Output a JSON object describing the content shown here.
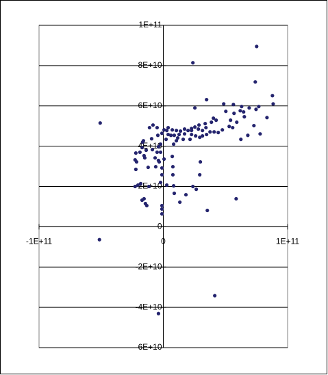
{
  "chart_data": {
    "type": "scatter",
    "color": "#24246e",
    "grid": true,
    "xlim": [
      -100000000000.0,
      100000000000.0
    ],
    "xticks": [
      {
        "value": -100000000000.0,
        "label": "-1E+11"
      },
      0,
      {
        "value": 100000000000.0,
        "label": "1E+11"
      }
    ],
    "ylim": [
      -60000000000.0,
      100000000000.0
    ],
    "yticks": [
      {
        "value": 100000000000.0,
        "label": "1E+11"
      },
      {
        "value": 80000000000.0,
        "label": "8E+10"
      },
      {
        "value": 60000000000.0,
        "label": "6E+10"
      },
      {
        "value": 40000000000.0,
        "label": "4E+10"
      },
      {
        "value": 20000000000.0,
        "label": "2E+10"
      },
      0,
      {
        "value": -20000000000.0,
        "label": "-2E+10"
      },
      {
        "value": -40000000000.0,
        "label": "-4E+10"
      },
      {
        "value": -60000000000.0,
        "label": "-6E+10"
      }
    ],
    "x": [
      75100000000.0,
      23800000000.0,
      74000000000.0,
      34800000000.0,
      87800000000.0,
      88400000000.0,
      48600000000.0,
      56400000000.0,
      63000000000.0,
      69100000000.0,
      76800000000.0,
      74600000000.0,
      25400000000.0,
      50300000000.0,
      56900000000.0,
      61900000000.0,
      64600000000.0,
      83400000000.0,
      65200000000.0,
      -50800000000.0,
      42500000000.0,
      54100000000.0,
      59100000000.0,
      72900000000.0,
      53000000000.0,
      55800000000.0,
      40300000000.0,
      38700000000.0,
      33700000000.0,
      28700000000.0,
      47500000000.0,
      40900000000.0,
      44200000000.0,
      34300000000.0,
      31500000000.0,
      28200000000.0,
      25400000000.0,
      22700000000.0,
      19900000000.0,
      17100000000.0,
      13800000000.0,
      10500000000.0,
      7200000000.0,
      3900000000.0,
      2800000000.0,
      600000000.0,
      -5000000000.0,
      -8300000000.0,
      -11100000000.0,
      -1100000000.0,
      8800000000.0,
      12700000000.0,
      17100000000.0,
      22700000000.0,
      26000000000.0,
      29300000000.0,
      11600000000.0,
      16000000000.0,
      21500000000.0,
      6100000000.0,
      3900000000.0,
      22700000000.0,
      31500000000.0,
      34800000000.0,
      37600000000.0,
      77900000000.0,
      62400000000.0,
      68000000000.0,
      10500000000.0,
      8300000000.0,
      2200000000.0,
      -4400000000.0,
      -9400000000.0,
      -16000000000.0,
      -17100000000.0,
      -13800000000.0,
      -8800000000.0,
      -3900000000.0,
      -2200000000.0,
      -22100000000.0,
      -16600000000.0,
      -14900000000.0,
      -5000000000.0,
      600000000.0,
      -21500000000.0,
      -18800000000.0,
      -15500000000.0,
      -6600000000.0,
      -3900000000.0,
      -2200000000.0,
      -22700000000.0,
      -12200000000.0,
      -3300000000.0,
      -1100000000.0,
      7200000000.0,
      29800000000.0,
      7700000000.0,
      -6100000000.0,
      -22100000000.0,
      -1100000000.0,
      7700000000.0,
      29300000000.0,
      -2200000000.0,
      -18200000000.0,
      -20400000000.0,
      -22700000000.0,
      -11600000000.0,
      2800000000.0,
      8300000000.0,
      23800000000.0,
      26500000000.0,
      18200000000.0,
      8800000000.0,
      13300000000.0,
      -15500000000.0,
      -17100000000.0,
      -14400000000.0,
      -13300000000.0,
      -1100000000.0,
      -1100000000.0,
      -1100000000.0,
      35400000000.0,
      58600000000.0,
      -51400000000.0,
      41400000000.0,
      -3900000000.0
    ],
    "values": [
      89500000000.0,
      81400000000.0,
      71900000000.0,
      63100000000.0,
      65100000000.0,
      61000000000.0,
      61000000000.0,
      60700000000.0,
      59700000000.0,
      59000000000.0,
      59700000000.0,
      58300000000.0,
      59000000000.0,
      57300000000.0,
      56300000000.0,
      57600000000.0,
      57000000000.0,
      54200000000.0,
      54600000000.0,
      51500000000.0,
      52900000000.0,
      52900000000.0,
      51900000000.0,
      50200000000.0,
      49800000000.0,
      49200000000.0,
      53900000000.0,
      51900000000.0,
      51200000000.0,
      50500000000.0,
      48100000000.0,
      47100000000.0,
      46800000000.0,
      49200000000.0,
      47800000000.0,
      48500000000.0,
      49500000000.0,
      48800000000.0,
      47800000000.0,
      48500000000.0,
      47500000000.0,
      47800000000.0,
      48100000000.0,
      49200000000.0,
      47800000000.0,
      48100000000.0,
      49200000000.0,
      50500000000.0,
      49200000000.0,
      46400000000.0,
      45400000000.0,
      45800000000.0,
      46100000000.0,
      45800000000.0,
      45100000000.0,
      44400000000.0,
      44100000000.0,
      43400000000.0,
      43400000000.0,
      45400000000.0,
      45800000000.0,
      47800000000.0,
      45100000000.0,
      45800000000.0,
      47100000000.0,
      46100000000.0,
      43400000000.0,
      45400000000.0,
      42700000000.0,
      41000000000.0,
      43400000000.0,
      45400000000.0,
      43700000000.0,
      42700000000.0,
      39300000000.0,
      38000000000.0,
      38300000000.0,
      39700000000.0,
      41000000000.0,
      36600000000.0,
      42000000000.0,
      34200000000.0,
      37000000000.0,
      33600000000.0,
      32200000000.0,
      37000000000.0,
      35300000000.0,
      34200000000.0,
      32900000000.0,
      37000000000.0,
      33200000000.0,
      29500000000.0,
      32200000000.0,
      29200000000.0,
      34900000000.0,
      32200000000.0,
      29800000000.0,
      29800000000.0,
      28500000000.0,
      25800000000.0,
      25800000000.0,
      25800000000.0,
      22000000000.0,
      21400000000.0,
      20700000000.0,
      20000000000.0,
      20000000000.0,
      20700000000.0,
      20300000000.0,
      20000000000.0,
      18600000000.0,
      15900000000.0,
      16600000000.0,
      12200000000.0,
      13900000000.0,
      13200000000.0,
      11500000000.0,
      10500000000.0,
      10500000000.0,
      8800000000.0,
      6400000000.0,
      8100000000.0,
      13900000000.0,
      -6400000000.0,
      -34200000000.0,
      -43100000000.0
    ]
  }
}
